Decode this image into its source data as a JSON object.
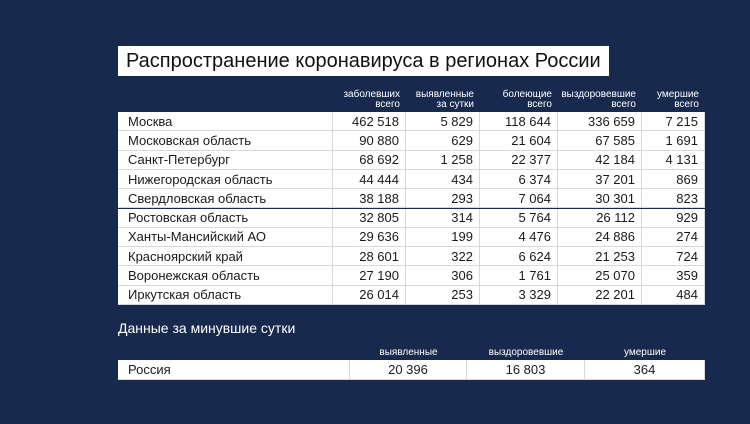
{
  "title": "Распространение коронавируса в регионах России",
  "table": {
    "headers": [
      [
        "заболевших",
        "всего"
      ],
      [
        "выявленные",
        "за сутки"
      ],
      [
        "болеющие",
        "всего"
      ],
      [
        "выздоровевшие",
        "всего"
      ],
      [
        "умершие",
        "всего"
      ]
    ],
    "rows": [
      [
        "Москва",
        "462 518",
        "5 829",
        "118 644",
        "336 659",
        "7 215"
      ],
      [
        "Московская область",
        "90 880",
        "629",
        "21 604",
        "67 585",
        "1 691"
      ],
      [
        "Санкт-Петербург",
        "68 692",
        "1 258",
        "22 377",
        "42 184",
        "4 131"
      ],
      [
        "Нижегородская область",
        "44 444",
        "434",
        "6 374",
        "37 201",
        "869"
      ],
      [
        "Свердловская область",
        "38 188",
        "293",
        "7 064",
        "30 301",
        "823"
      ],
      [
        "Ростовская область",
        "32 805",
        "314",
        "5 764",
        "26 112",
        "929"
      ],
      [
        "Ханты-Мансийский АО",
        "29 636",
        "199",
        "4 476",
        "24 886",
        "274"
      ],
      [
        "Красноярский край",
        "28 601",
        "322",
        "6 624",
        "21 253",
        "724"
      ],
      [
        "Воронежская область",
        "27 190",
        "306",
        "1 761",
        "25 070",
        "359"
      ],
      [
        "Иркутская область",
        "26 014",
        "253",
        "3 329",
        "22 201",
        "484"
      ]
    ]
  },
  "daily": {
    "title": "Данные за минувшие сутки",
    "headers": [
      "выявленные",
      "выздоровевшие",
      "умершие"
    ],
    "rows": [
      [
        "Россия",
        "20 396",
        "16 803",
        "364"
      ]
    ]
  }
}
